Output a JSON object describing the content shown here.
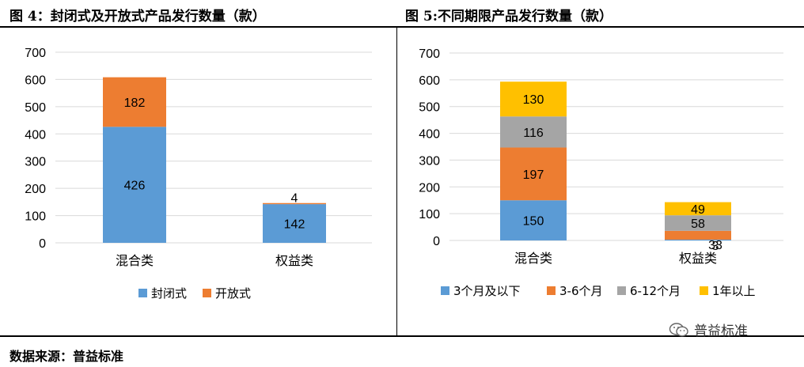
{
  "titles": {
    "left": "图 4：封闭式及开放式产品发行数量（款）",
    "right": "图 5:不同期限产品发行数量（款）"
  },
  "footer": "数据来源：普益标准",
  "watermark": {
    "text": "普益标准",
    "icon": "wechat-icon"
  },
  "chart_data": [
    {
      "type": "bar",
      "stacked": true,
      "title": "图 4：封闭式及开放式产品发行数量（款）",
      "categories": [
        "混合类",
        "权益类"
      ],
      "series": [
        {
          "name": "封闭式",
          "values": [
            426,
            142
          ],
          "color": "#5B9BD5"
        },
        {
          "name": "开放式",
          "values": [
            182,
            4
          ],
          "color": "#ED7D31"
        }
      ],
      "ylim": [
        0,
        700
      ],
      "yticks": [
        0,
        100,
        200,
        300,
        400,
        500,
        600,
        700
      ],
      "grid": true,
      "legend": "bottom"
    },
    {
      "type": "bar",
      "stacked": true,
      "title": "图 5:不同期限产品发行数量（款）",
      "categories": [
        "混合类",
        "权益类"
      ],
      "series": [
        {
          "name": "3个月及以下",
          "values": [
            150,
            3
          ],
          "color": "#5B9BD5"
        },
        {
          "name": "3-6个月",
          "values": [
            197,
            33
          ],
          "color": "#ED7D31"
        },
        {
          "name": "6-12个月",
          "values": [
            116,
            58
          ],
          "color": "#A5A5A5"
        },
        {
          "name": "1年以上",
          "values": [
            130,
            49
          ],
          "color": "#FFC000"
        }
      ],
      "ylim": [
        0,
        700
      ],
      "yticks": [
        0,
        100,
        200,
        300,
        400,
        500,
        600,
        700
      ],
      "grid": true,
      "legend": "bottom"
    }
  ]
}
